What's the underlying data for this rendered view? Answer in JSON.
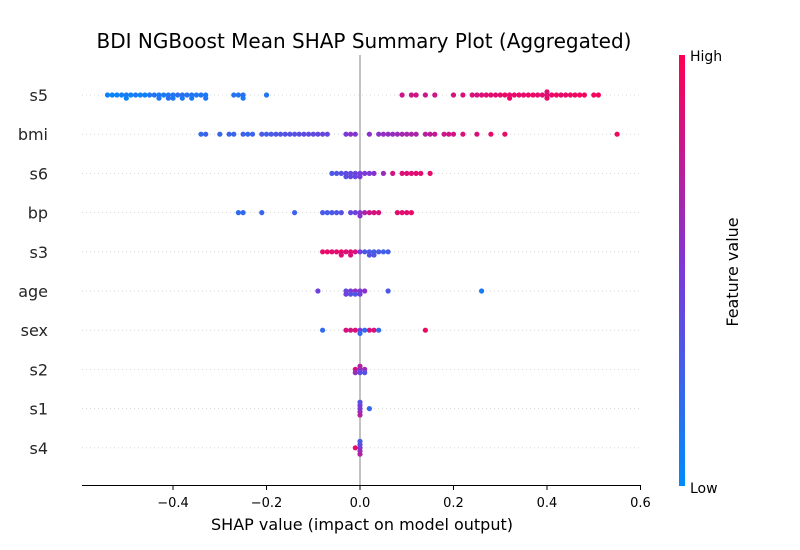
{
  "chart_data": {
    "type": "scatter",
    "title": "BDI NGBoost Mean SHAP Summary Plot (Aggregated)",
    "xlabel": "SHAP value (impact on model output)",
    "ylabel": "",
    "xlim": [
      -0.6,
      0.6
    ],
    "xticks": [
      -0.4,
      -0.2,
      0.0,
      0.2,
      0.4,
      0.6
    ],
    "xtick_labels": [
      "−0.4",
      "−0.2",
      "0.0",
      "0.2",
      "0.4",
      "0.6"
    ],
    "features": [
      "s5",
      "bmi",
      "s6",
      "bp",
      "s3",
      "age",
      "sex",
      "s2",
      "s1",
      "s4"
    ],
    "grid": false,
    "colorbar": {
      "label": "Feature value",
      "high_label": "High",
      "low_label": "Low",
      "high_color": "#ff0052",
      "mid_color": "#7c38d8",
      "low_color": "#008bfb"
    },
    "series": [
      {
        "feature": "s5",
        "points": [
          [
            -0.54,
            0.05
          ],
          [
            -0.53,
            0.04
          ],
          [
            -0.52,
            0.05
          ],
          [
            -0.51,
            0.08
          ],
          [
            -0.5,
            0.1
          ],
          [
            -0.5,
            0.06
          ],
          [
            -0.49,
            0.05
          ],
          [
            -0.48,
            0.12
          ],
          [
            -0.47,
            0.05
          ],
          [
            -0.46,
            0.06
          ],
          [
            -0.45,
            0.12
          ],
          [
            -0.44,
            0.15
          ],
          [
            -0.43,
            0.1
          ],
          [
            -0.43,
            0.12
          ],
          [
            -0.42,
            0.1
          ],
          [
            -0.41,
            0.12
          ],
          [
            -0.41,
            0.16
          ],
          [
            -0.4,
            0.14
          ],
          [
            -0.4,
            0.1
          ],
          [
            -0.39,
            0.17
          ],
          [
            -0.38,
            0.16
          ],
          [
            -0.38,
            0.12
          ],
          [
            -0.37,
            0.15
          ],
          [
            -0.36,
            0.15
          ],
          [
            -0.36,
            0.1
          ],
          [
            -0.35,
            0.12
          ],
          [
            -0.34,
            0.13
          ],
          [
            -0.33,
            0.1
          ],
          [
            -0.33,
            0.12
          ],
          [
            -0.27,
            0.14
          ],
          [
            -0.26,
            0.12
          ],
          [
            -0.25,
            0.16
          ],
          [
            -0.25,
            0.1
          ],
          [
            -0.2,
            0.12
          ],
          [
            0.09,
            0.8
          ],
          [
            0.11,
            0.8
          ],
          [
            0.12,
            0.82
          ],
          [
            0.14,
            0.78
          ],
          [
            0.16,
            0.8
          ],
          [
            0.2,
            0.84
          ],
          [
            0.22,
            0.86
          ],
          [
            0.24,
            0.86
          ],
          [
            0.25,
            0.84
          ],
          [
            0.26,
            0.86
          ],
          [
            0.27,
            0.88
          ],
          [
            0.28,
            0.9
          ],
          [
            0.29,
            0.88
          ],
          [
            0.3,
            0.9
          ],
          [
            0.31,
            0.92
          ],
          [
            0.32,
            0.9
          ],
          [
            0.32,
            0.93
          ],
          [
            0.33,
            0.91
          ],
          [
            0.34,
            0.9
          ],
          [
            0.35,
            0.92
          ],
          [
            0.36,
            0.94
          ],
          [
            0.37,
            0.92
          ],
          [
            0.38,
            0.92
          ],
          [
            0.39,
            0.88
          ],
          [
            0.4,
            0.88
          ],
          [
            0.4,
            0.9
          ],
          [
            0.4,
            0.86
          ],
          [
            0.41,
            0.92
          ],
          [
            0.42,
            0.94
          ],
          [
            0.43,
            0.9
          ],
          [
            0.44,
            0.92
          ],
          [
            0.45,
            0.93
          ],
          [
            0.46,
            0.94
          ],
          [
            0.47,
            0.96
          ],
          [
            0.48,
            0.95
          ],
          [
            0.5,
            0.96
          ],
          [
            0.51,
            0.98
          ]
        ]
      },
      {
        "feature": "bmi",
        "points": [
          [
            -0.34,
            0.2
          ],
          [
            -0.33,
            0.25
          ],
          [
            -0.3,
            0.22
          ],
          [
            -0.28,
            0.24
          ],
          [
            -0.27,
            0.22
          ],
          [
            -0.25,
            0.26
          ],
          [
            -0.24,
            0.2
          ],
          [
            -0.23,
            0.25
          ],
          [
            -0.21,
            0.3
          ],
          [
            -0.2,
            0.28
          ],
          [
            -0.19,
            0.3
          ],
          [
            -0.18,
            0.32
          ],
          [
            -0.17,
            0.32
          ],
          [
            -0.16,
            0.35
          ],
          [
            -0.15,
            0.36
          ],
          [
            -0.14,
            0.34
          ],
          [
            -0.13,
            0.38
          ],
          [
            -0.12,
            0.36
          ],
          [
            -0.11,
            0.4
          ],
          [
            -0.1,
            0.38
          ],
          [
            -0.09,
            0.4
          ],
          [
            -0.08,
            0.42
          ],
          [
            -0.07,
            0.42
          ],
          [
            -0.03,
            0.5
          ],
          [
            -0.02,
            0.55
          ],
          [
            -0.01,
            0.52
          ],
          [
            0.02,
            0.55
          ],
          [
            0.04,
            0.55
          ],
          [
            0.05,
            0.6
          ],
          [
            0.06,
            0.58
          ],
          [
            0.07,
            0.6
          ],
          [
            0.08,
            0.62
          ],
          [
            0.09,
            0.65
          ],
          [
            0.1,
            0.66
          ],
          [
            0.11,
            0.68
          ],
          [
            0.12,
            0.68
          ],
          [
            0.14,
            0.72
          ],
          [
            0.15,
            0.74
          ],
          [
            0.16,
            0.75
          ],
          [
            0.18,
            0.8
          ],
          [
            0.19,
            0.8
          ],
          [
            0.2,
            0.82
          ],
          [
            0.22,
            0.85
          ],
          [
            0.25,
            0.85
          ],
          [
            0.28,
            0.9
          ],
          [
            0.31,
            0.92
          ],
          [
            0.55,
            0.96
          ]
        ]
      },
      {
        "feature": "s6",
        "points": [
          [
            -0.06,
            0.3
          ],
          [
            -0.05,
            0.32
          ],
          [
            -0.04,
            0.35
          ],
          [
            -0.03,
            0.4
          ],
          [
            -0.03,
            0.35
          ],
          [
            -0.02,
            0.38
          ],
          [
            -0.02,
            0.42
          ],
          [
            -0.01,
            0.45
          ],
          [
            -0.01,
            0.4
          ],
          [
            0.0,
            0.45
          ],
          [
            0.0,
            0.5
          ],
          [
            0.01,
            0.5
          ],
          [
            0.02,
            0.5
          ],
          [
            0.03,
            0.55
          ],
          [
            0.05,
            0.6
          ],
          [
            0.07,
            0.82
          ],
          [
            0.09,
            0.86
          ],
          [
            0.1,
            0.88
          ],
          [
            0.11,
            0.86
          ],
          [
            0.12,
            0.9
          ],
          [
            0.13,
            0.88
          ],
          [
            0.15,
            0.9
          ]
        ]
      },
      {
        "feature": "bp",
        "points": [
          [
            -0.26,
            0.2
          ],
          [
            -0.25,
            0.2
          ],
          [
            -0.21,
            0.22
          ],
          [
            -0.14,
            0.25
          ],
          [
            -0.08,
            0.3
          ],
          [
            -0.07,
            0.28
          ],
          [
            -0.06,
            0.3
          ],
          [
            -0.05,
            0.32
          ],
          [
            -0.04,
            0.35
          ],
          [
            -0.02,
            0.4
          ],
          [
            -0.01,
            0.45
          ],
          [
            0.0,
            0.5
          ],
          [
            0.0,
            0.55
          ],
          [
            0.01,
            0.7
          ],
          [
            0.02,
            0.8
          ],
          [
            0.03,
            0.85
          ],
          [
            0.04,
            0.85
          ],
          [
            0.08,
            0.9
          ],
          [
            0.09,
            0.88
          ],
          [
            0.1,
            0.9
          ],
          [
            0.11,
            0.92
          ]
        ]
      },
      {
        "feature": "s3",
        "points": [
          [
            -0.08,
            0.9
          ],
          [
            -0.07,
            0.92
          ],
          [
            -0.06,
            0.88
          ],
          [
            -0.05,
            0.9
          ],
          [
            -0.04,
            0.92
          ],
          [
            -0.04,
            0.88
          ],
          [
            -0.03,
            0.85
          ],
          [
            -0.02,
            0.9
          ],
          [
            -0.02,
            0.86
          ],
          [
            -0.01,
            0.84
          ],
          [
            0.0,
            0.5
          ],
          [
            0.01,
            0.3
          ],
          [
            0.02,
            0.3
          ],
          [
            0.02,
            0.35
          ],
          [
            0.03,
            0.28
          ],
          [
            0.03,
            0.32
          ],
          [
            0.04,
            0.3
          ],
          [
            0.05,
            0.25
          ],
          [
            0.06,
            0.28
          ]
        ]
      },
      {
        "feature": "age",
        "points": [
          [
            -0.09,
            0.45
          ],
          [
            -0.03,
            0.4
          ],
          [
            -0.03,
            0.45
          ],
          [
            -0.02,
            0.5
          ],
          [
            -0.02,
            0.35
          ],
          [
            -0.01,
            0.6
          ],
          [
            -0.01,
            0.3
          ],
          [
            0.0,
            0.5
          ],
          [
            0.0,
            0.45
          ],
          [
            0.01,
            0.55
          ],
          [
            0.06,
            0.3
          ],
          [
            0.26,
            0.1
          ]
        ]
      },
      {
        "feature": "sex",
        "points": [
          [
            -0.08,
            0.2
          ],
          [
            -0.03,
            0.85
          ],
          [
            -0.02,
            0.82
          ],
          [
            -0.01,
            0.88
          ],
          [
            0.0,
            0.5
          ],
          [
            0.0,
            0.2
          ],
          [
            0.01,
            0.2
          ],
          [
            0.02,
            0.85
          ],
          [
            0.03,
            0.88
          ],
          [
            0.04,
            0.2
          ],
          [
            0.14,
            0.95
          ]
        ]
      },
      {
        "feature": "s2",
        "points": [
          [
            -0.01,
            0.85
          ],
          [
            -0.01,
            0.6
          ],
          [
            0.0,
            0.5
          ],
          [
            0.0,
            0.4
          ],
          [
            0.0,
            0.7
          ],
          [
            0.01,
            0.6
          ],
          [
            0.01,
            0.35
          ]
        ]
      },
      {
        "feature": "s1",
        "points": [
          [
            0.0,
            0.45
          ],
          [
            0.0,
            0.6
          ],
          [
            0.0,
            0.5
          ],
          [
            0.0,
            0.7
          ],
          [
            0.0,
            0.35
          ],
          [
            0.02,
            0.2
          ]
        ]
      },
      {
        "feature": "s4",
        "points": [
          [
            -0.01,
            0.9
          ],
          [
            0.0,
            0.5
          ],
          [
            0.0,
            0.6
          ],
          [
            0.0,
            0.4
          ],
          [
            0.0,
            0.7
          ],
          [
            0.0,
            0.3
          ]
        ]
      }
    ]
  }
}
